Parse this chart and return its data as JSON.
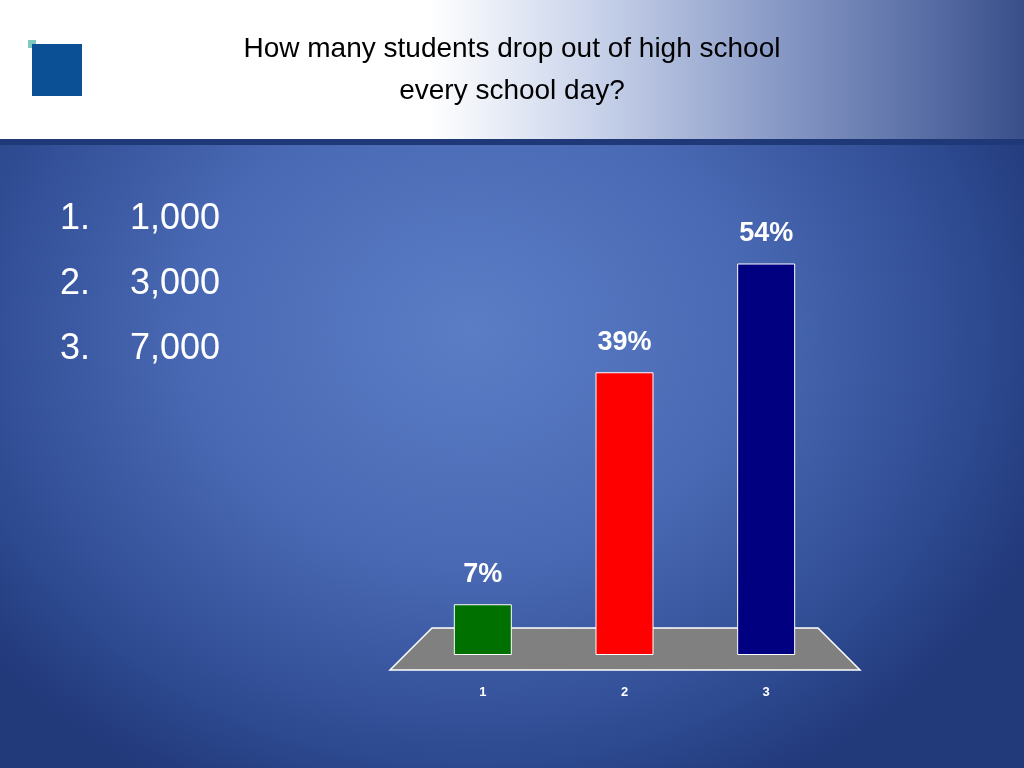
{
  "chart_data": {
    "type": "bar",
    "title": "How many students drop out of high school every school day?",
    "categories": [
      "1",
      "2",
      "3"
    ],
    "values": [
      7,
      39,
      54
    ],
    "colors": [
      "#007000",
      "#ff0000",
      "#000080"
    ],
    "value_labels": [
      "7%",
      "39%",
      "54%"
    ],
    "annotations": [
      "1. 1,000",
      "2. 3,000",
      "3. 7,000"
    ]
  }
}
